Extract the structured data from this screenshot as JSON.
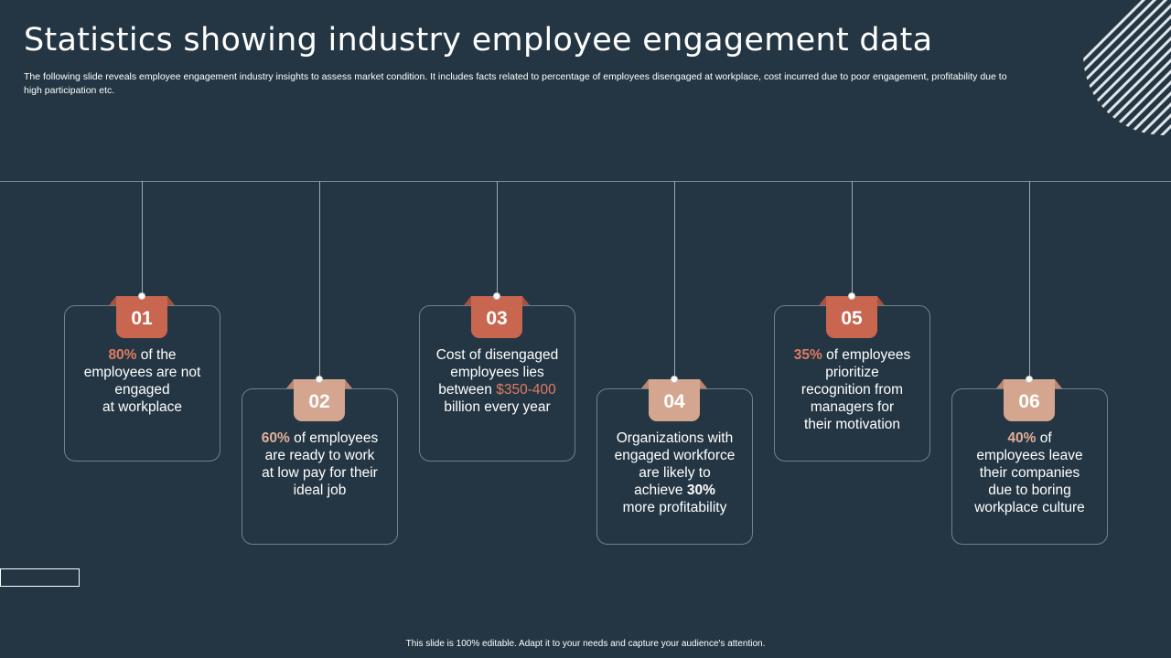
{
  "slide": {
    "title": "Statistics showing industry employee engagement data",
    "subtitle": "The following slide reveals employee engagement industry insights to assess market condition. It includes facts related to percentage of employees disengaged at workplace, cost incurred due to poor engagement, profitability due to high participation etc.",
    "footer": "This slide is 100% editable.  Adapt it to your needs and capture your audience's attention."
  },
  "colors": {
    "background": "#243643",
    "accent_orange": "#c9664f",
    "accent_peach": "#d4a68f"
  },
  "cards": [
    {
      "number": "01",
      "style": "orange",
      "lines": [
        [
          "80%",
          " of the"
        ],
        [
          "employees are not"
        ],
        [
          "engaged"
        ],
        [
          "at workplace"
        ]
      ]
    },
    {
      "number": "02",
      "style": "peach",
      "lines": [
        [
          "60%",
          " of employees"
        ],
        [
          "are ready to work"
        ],
        [
          "at low pay for their"
        ],
        [
          "ideal job"
        ]
      ]
    },
    {
      "number": "03",
      "style": "orange",
      "lines": [
        [
          "Cost of disengaged"
        ],
        [
          "employees lies"
        ],
        [
          "between ",
          "$350-400"
        ],
        [
          "billion every year"
        ]
      ]
    },
    {
      "number": "04",
      "style": "peach",
      "lines": [
        [
          "Organizations with"
        ],
        [
          "engaged workforce"
        ],
        [
          "are likely to"
        ],
        [
          "achieve ",
          "30%"
        ],
        [
          "more profitability"
        ]
      ]
    },
    {
      "number": "05",
      "style": "orange",
      "lines": [
        [
          "35%",
          " of employees"
        ],
        [
          "prioritize"
        ],
        [
          "recognition from"
        ],
        [
          "managers for"
        ],
        [
          "their motivation"
        ]
      ]
    },
    {
      "number": "06",
      "style": "peach",
      "lines": [
        [
          "40%",
          " of"
        ],
        [
          "employees leave"
        ],
        [
          "their companies"
        ],
        [
          "due to boring"
        ],
        [
          "workplace culture"
        ]
      ]
    }
  ]
}
